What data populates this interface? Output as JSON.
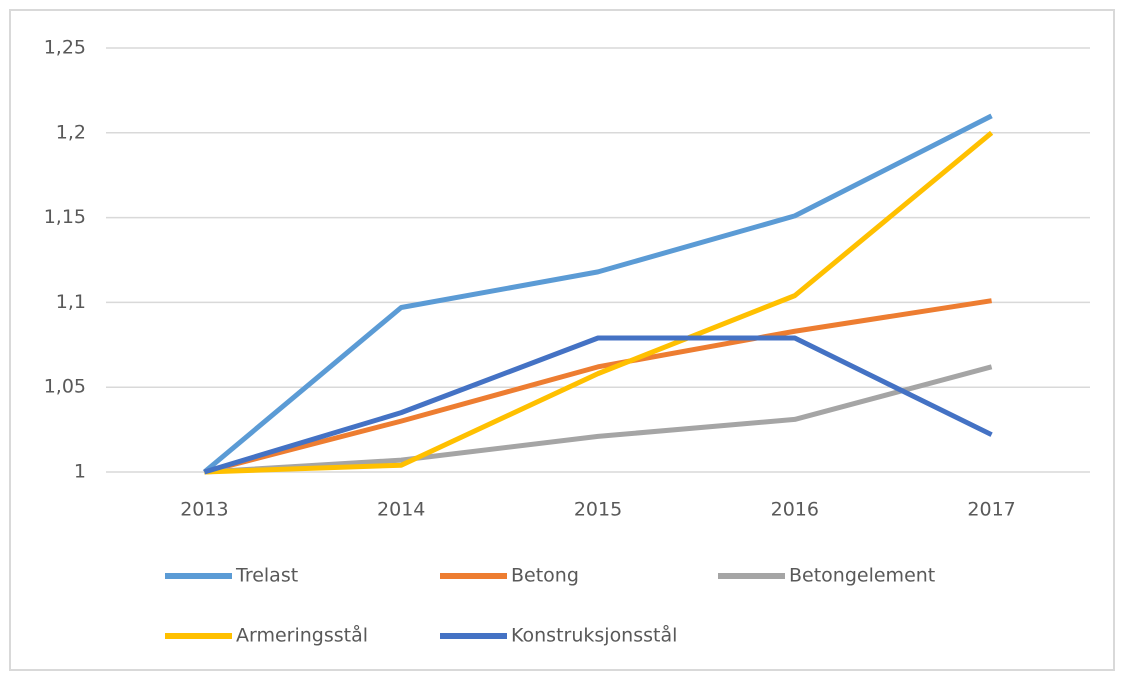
{
  "chart_data": {
    "type": "line",
    "categories": [
      "2013",
      "2014",
      "2015",
      "2016",
      "2017"
    ],
    "series": [
      {
        "name": "Trelast",
        "color": "#5b9bd5",
        "values": [
          1,
          1.097,
          1.118,
          1.151,
          1.21
        ]
      },
      {
        "name": "Betong",
        "color": "#ed7d31",
        "values": [
          1,
          1.03,
          1.062,
          1.083,
          1.101
        ]
      },
      {
        "name": "Betongelement",
        "color": "#a5a5a5",
        "values": [
          1,
          1.007,
          1.021,
          1.031,
          1.062
        ]
      },
      {
        "name": "Armeringsstål",
        "color": "#ffc000",
        "values": [
          1,
          1.004,
          1.058,
          1.104,
          1.2
        ]
      },
      {
        "name": "Konstruksjonsstål",
        "color": "#4472c4",
        "values": [
          1,
          1.035,
          1.079,
          1.079,
          1.022
        ]
      }
    ],
    "ylim": [
      1,
      1.25
    ],
    "yticks": [
      1,
      {
        "value": 1.05,
        "label": "1,05"
      },
      {
        "value": 1.1,
        "label": "1,1"
      },
      {
        "value": 1.15,
        "label": "1,15"
      },
      {
        "value": 1.2,
        "label": "1,2"
      },
      {
        "value": 1.25,
        "label": "1,25"
      }
    ],
    "grid": true,
    "legend": "bottom"
  }
}
